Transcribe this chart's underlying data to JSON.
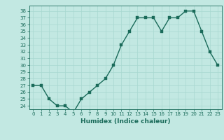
{
  "x": [
    0,
    1,
    2,
    3,
    4,
    5,
    6,
    7,
    8,
    9,
    10,
    11,
    12,
    13,
    14,
    15,
    16,
    17,
    18,
    19,
    20,
    21,
    22,
    23
  ],
  "y": [
    27,
    27,
    25,
    24,
    24,
    23,
    25,
    26,
    27,
    28,
    30,
    33,
    35,
    37,
    37,
    37,
    35,
    37,
    37,
    38,
    38,
    35,
    32,
    30
  ],
  "line_color": "#1a6b5a",
  "marker_color": "#1a6b5a",
  "bg_color": "#c2e8e2",
  "grid_color": "#a8d8d0",
  "xlabel": "Humidex (Indice chaleur)",
  "ylabel": "",
  "ylim": [
    23.5,
    38.8
  ],
  "xlim": [
    -0.5,
    23.5
  ],
  "yticks": [
    24,
    25,
    26,
    27,
    28,
    29,
    30,
    31,
    32,
    33,
    34,
    35,
    36,
    37,
    38
  ],
  "xticks": [
    0,
    1,
    2,
    3,
    4,
    5,
    6,
    7,
    8,
    9,
    10,
    11,
    12,
    13,
    14,
    15,
    16,
    17,
    18,
    19,
    20,
    21,
    22,
    23
  ],
  "marker_size": 2.5,
  "line_width": 1.0,
  "label_fontsize": 6.5,
  "tick_fontsize": 5.0
}
